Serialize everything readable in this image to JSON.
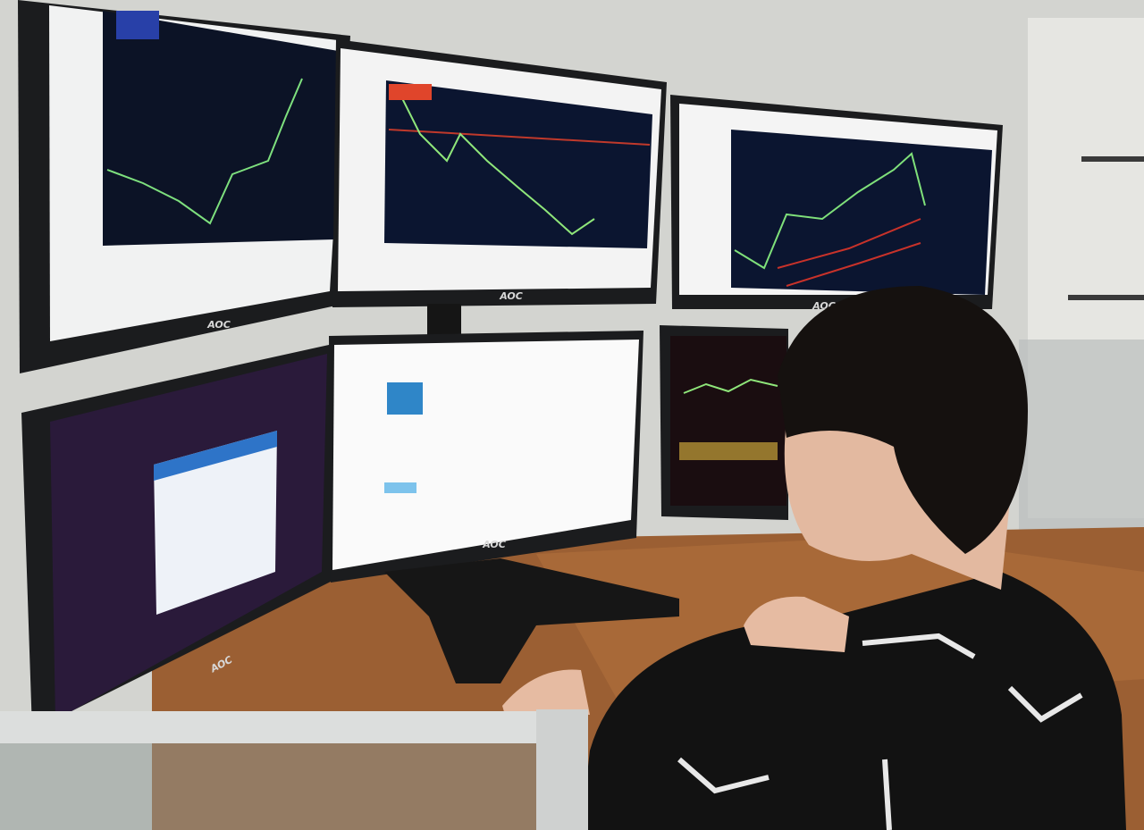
{
  "monitors": [
    {
      "brand": "AOC"
    },
    {
      "brand": "AOC"
    },
    {
      "brand": "AOC"
    },
    {
      "brand": "AOC"
    },
    {
      "brand": "AOC"
    }
  ]
}
